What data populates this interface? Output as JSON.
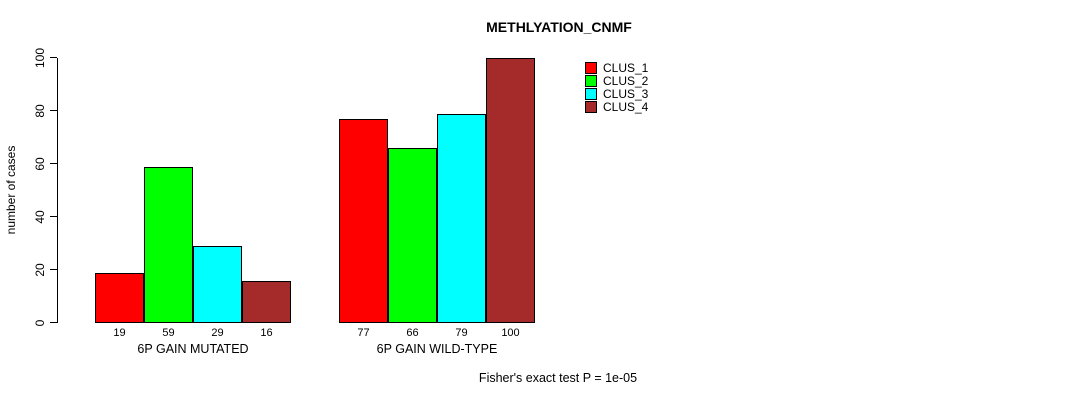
{
  "chart_data": {
    "type": "bar",
    "title": "METHLYATION_CNMF",
    "xlabel": "",
    "ylabel": "number of cases",
    "ylim": [
      0,
      100
    ],
    "yticks": [
      0,
      20,
      40,
      60,
      80,
      100
    ],
    "grid": false,
    "legend_position": "top-right",
    "categories": [
      "6P GAIN MUTATED",
      "6P GAIN WILD-TYPE"
    ],
    "series": [
      {
        "name": "CLUS_1",
        "color": "#ff0000",
        "values": [
          19,
          77
        ]
      },
      {
        "name": "CLUS_2",
        "color": "#00ff00",
        "values": [
          59,
          66
        ]
      },
      {
        "name": "CLUS_3",
        "color": "#00ffff",
        "values": [
          29,
          79
        ]
      },
      {
        "name": "CLUS_4",
        "color": "#a52a2a",
        "values": [
          16,
          100
        ]
      }
    ],
    "bar_value_labels_shown": true
  },
  "footnote": "Fisher's exact test P = 1e-05"
}
